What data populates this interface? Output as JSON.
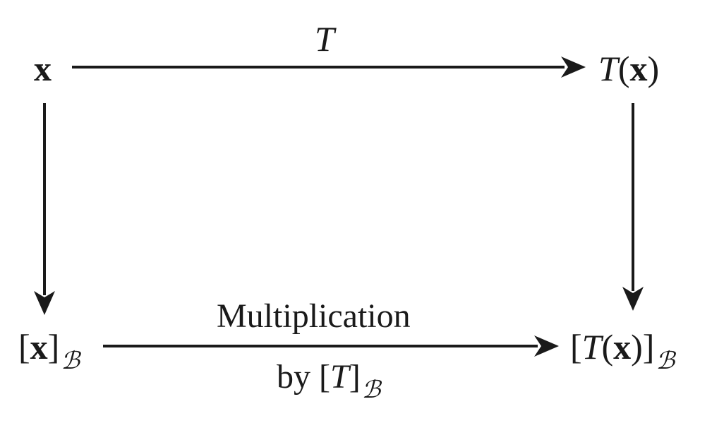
{
  "nodes": {
    "x": {
      "vec": "x"
    },
    "tx": {
      "fn": "T",
      "open": "(",
      "vec": "x",
      "close": ")"
    },
    "xb": {
      "open": "[",
      "vec": "x",
      "close": "]",
      "basis": "ℬ"
    },
    "txb": {
      "open": "[",
      "fn": "T",
      "paren_open": "(",
      "vec": "x",
      "paren_close": ")",
      "close": "]",
      "basis": "ℬ"
    }
  },
  "edges": {
    "top": {
      "label": "T"
    },
    "bottom": {
      "label_line1": "Multiplication",
      "label_line2_prefix": "by [",
      "label_line2_fn": "T",
      "label_line2_close": "]",
      "basis": "ℬ"
    }
  },
  "colors": {
    "ink": "#1a1a1a",
    "background": "#ffffff"
  }
}
